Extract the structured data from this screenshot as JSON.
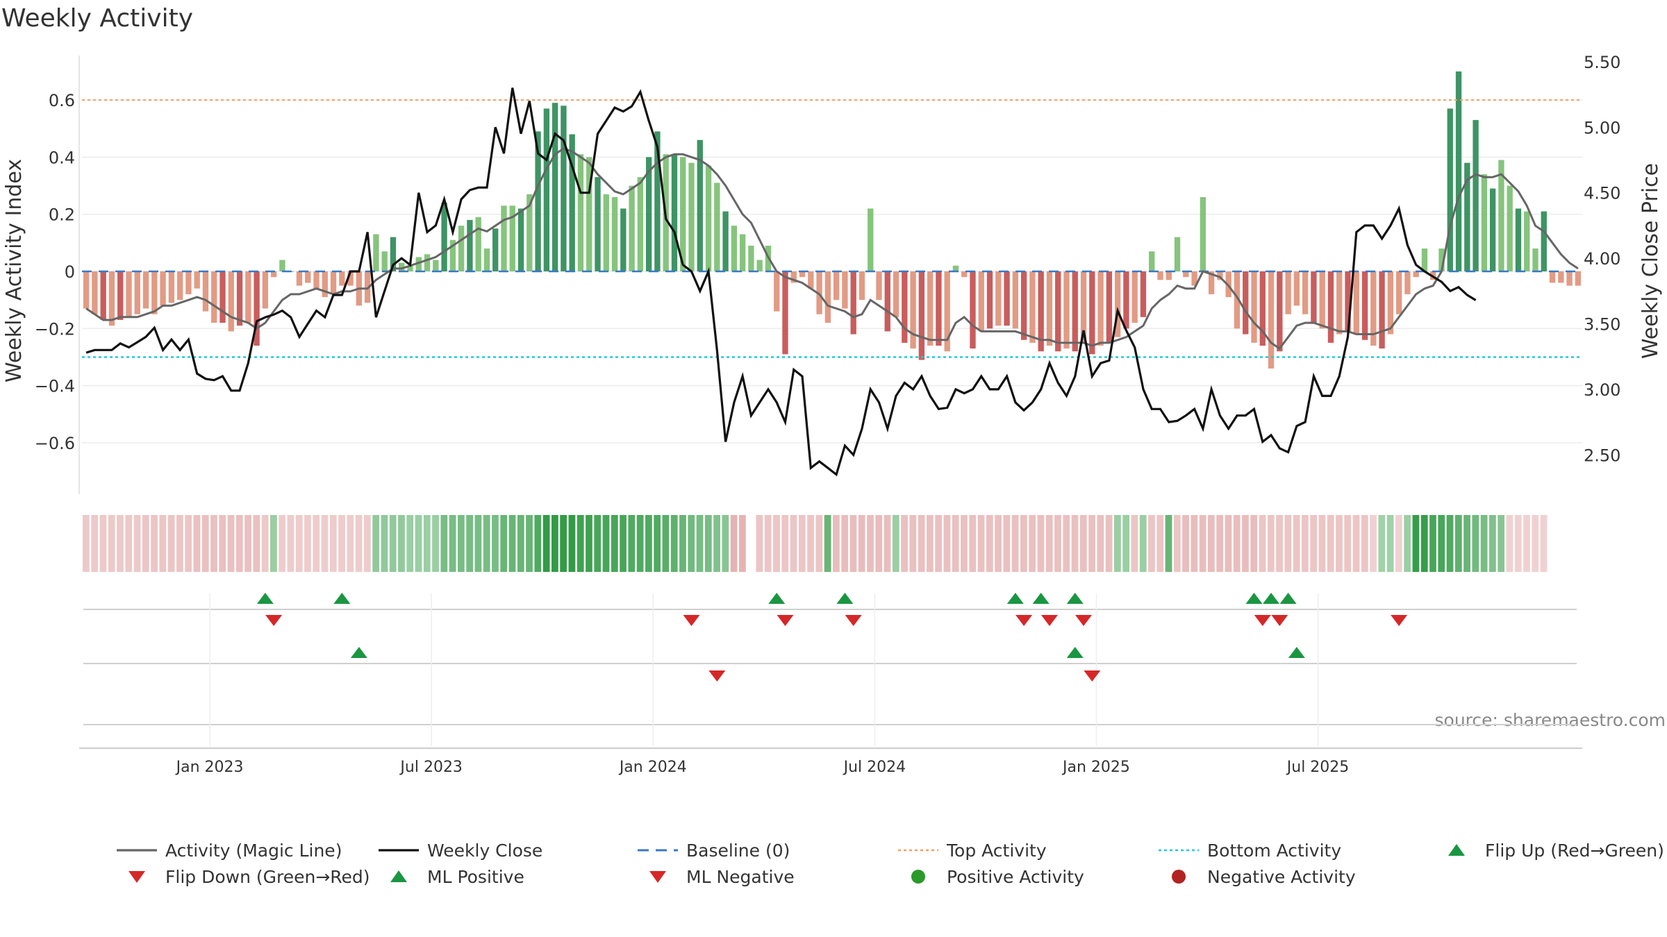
{
  "chart_data": {
    "type": "bar",
    "title": "Weekly Activity",
    "source": "source: sharemaestro.com",
    "ylabel": "Weekly Activity Index",
    "y2label": "Weekly Close Price",
    "ylim": [
      -0.78,
      0.78
    ],
    "y2lim": [
      2.2,
      5.6
    ],
    "yticks": [
      "0.6",
      "0.4",
      "0.2",
      "0",
      "−0.2",
      "−0.4",
      "−0.6"
    ],
    "yticks_values": [
      0.6,
      0.4,
      0.2,
      0,
      -0.2,
      -0.4,
      -0.6
    ],
    "y2ticks": [
      "5.50",
      "5.00",
      "4.50",
      "4.00",
      "3.50",
      "3.00",
      "2.50"
    ],
    "y2ticks_values": [
      5.5,
      5.0,
      4.5,
      4.0,
      3.5,
      3.0,
      2.5
    ],
    "xticks": [
      "Jan 2023",
      "Jul 2023",
      "Jan 2024",
      "Jul 2024",
      "Jan 2025",
      "Jul 2025"
    ],
    "xticks_week": [
      15,
      41,
      67,
      93,
      119,
      145
    ],
    "top_activity": 0.6,
    "bottom_activity": -0.3,
    "activity": [
      -0.13,
      -0.15,
      -0.17,
      -0.19,
      -0.17,
      -0.16,
      -0.15,
      -0.13,
      -0.15,
      -0.12,
      -0.11,
      -0.1,
      -0.08,
      -0.06,
      -0.14,
      -0.18,
      -0.18,
      -0.21,
      -0.19,
      -0.18,
      -0.26,
      -0.13,
      -0.02,
      0.04,
      0.0,
      -0.05,
      -0.04,
      -0.06,
      -0.09,
      -0.08,
      -0.05,
      -0.05,
      -0.12,
      -0.11,
      0.13,
      0.07,
      0.12,
      0.03,
      0.02,
      0.05,
      0.06,
      0.04,
      0.24,
      0.11,
      0.16,
      0.18,
      0.19,
      0.08,
      0.15,
      0.23,
      0.23,
      0.22,
      0.27,
      0.49,
      0.57,
      0.59,
      0.58,
      0.48,
      0.41,
      0.4,
      0.33,
      0.27,
      0.26,
      0.22,
      0.3,
      0.33,
      0.4,
      0.49,
      0.41,
      0.41,
      0.4,
      0.38,
      0.46,
      0.37,
      0.31,
      0.21,
      0.16,
      0.13,
      0.09,
      0.04,
      0.09,
      -0.14,
      -0.29,
      -0.04,
      -0.02,
      -0.06,
      -0.15,
      -0.18,
      -0.1,
      -0.13,
      -0.22,
      -0.1,
      0.22,
      -0.1,
      -0.21,
      -0.16,
      -0.25,
      -0.27,
      -0.31,
      -0.26,
      -0.26,
      -0.28,
      0.02,
      -0.02,
      -0.27,
      -0.21,
      -0.2,
      -0.19,
      -0.19,
      -0.2,
      -0.24,
      -0.25,
      -0.28,
      -0.26,
      -0.28,
      -0.27,
      -0.28,
      -0.25,
      -0.29,
      -0.26,
      -0.25,
      -0.23,
      -0.2,
      -0.18,
      -0.16,
      0.07,
      -0.03,
      -0.03,
      0.12,
      -0.02,
      -0.05,
      0.26,
      -0.08,
      -0.03,
      -0.09,
      -0.2,
      -0.22,
      -0.25,
      -0.26,
      -0.34,
      -0.28,
      -0.15,
      -0.12,
      -0.15,
      -0.18,
      -0.2,
      -0.25,
      -0.22,
      -0.21,
      -0.22,
      -0.24,
      -0.26,
      -0.27,
      -0.22,
      -0.15,
      -0.08,
      -0.02,
      0.08,
      -0.03,
      0.08,
      0.57,
      0.7,
      0.38,
      0.53,
      0.34,
      0.29,
      0.39,
      0.3,
      0.22,
      0.21,
      0.08,
      0.21,
      -0.04,
      -0.04,
      -0.05,
      -0.05
    ],
    "magic_line": [
      -0.13,
      -0.15,
      -0.17,
      -0.17,
      -0.16,
      -0.16,
      -0.16,
      -0.15,
      -0.14,
      -0.12,
      -0.12,
      -0.11,
      -0.1,
      -0.09,
      -0.1,
      -0.12,
      -0.14,
      -0.16,
      -0.17,
      -0.18,
      -0.2,
      -0.18,
      -0.14,
      -0.1,
      -0.08,
      -0.08,
      -0.07,
      -0.06,
      -0.07,
      -0.08,
      -0.07,
      -0.07,
      -0.06,
      -0.06,
      -0.03,
      -0.01,
      0.01,
      0.01,
      0.02,
      0.03,
      0.04,
      0.05,
      0.07,
      0.09,
      0.11,
      0.13,
      0.15,
      0.14,
      0.16,
      0.18,
      0.19,
      0.21,
      0.23,
      0.3,
      0.36,
      0.41,
      0.43,
      0.42,
      0.4,
      0.38,
      0.34,
      0.31,
      0.28,
      0.27,
      0.29,
      0.31,
      0.35,
      0.38,
      0.4,
      0.41,
      0.41,
      0.4,
      0.39,
      0.37,
      0.34,
      0.3,
      0.25,
      0.2,
      0.17,
      0.11,
      0.05,
      0.0,
      -0.02,
      -0.03,
      -0.04,
      -0.06,
      -0.08,
      -0.12,
      -0.13,
      -0.14,
      -0.16,
      -0.15,
      -0.1,
      -0.12,
      -0.14,
      -0.16,
      -0.2,
      -0.22,
      -0.23,
      -0.24,
      -0.24,
      -0.24,
      -0.18,
      -0.16,
      -0.19,
      -0.21,
      -0.21,
      -0.21,
      -0.21,
      -0.21,
      -0.22,
      -0.23,
      -0.24,
      -0.24,
      -0.25,
      -0.25,
      -0.25,
      -0.25,
      -0.26,
      -0.25,
      -0.25,
      -0.24,
      -0.23,
      -0.21,
      -0.19,
      -0.13,
      -0.1,
      -0.08,
      -0.05,
      -0.06,
      -0.06,
      0.0,
      -0.01,
      -0.02,
      -0.05,
      -0.09,
      -0.14,
      -0.18,
      -0.21,
      -0.25,
      -0.27,
      -0.23,
      -0.19,
      -0.18,
      -0.18,
      -0.19,
      -0.2,
      -0.21,
      -0.21,
      -0.22,
      -0.22,
      -0.22,
      -0.21,
      -0.2,
      -0.16,
      -0.12,
      -0.08,
      -0.06,
      -0.05,
      0.0,
      0.16,
      0.26,
      0.32,
      0.34,
      0.33,
      0.33,
      0.34,
      0.31,
      0.28,
      0.23,
      0.16,
      0.14,
      0.1,
      0.06,
      0.03,
      0.01
    ],
    "weekly_close": [
      3.28,
      3.3,
      3.3,
      3.3,
      3.35,
      3.32,
      3.36,
      3.4,
      3.47,
      3.3,
      3.38,
      3.3,
      3.38,
      3.12,
      3.08,
      3.07,
      3.1,
      2.99,
      2.99,
      3.2,
      3.52,
      3.55,
      3.57,
      3.6,
      3.55,
      3.4,
      3.5,
      3.6,
      3.55,
      3.72,
      3.72,
      3.9,
      3.9,
      4.2,
      3.55,
      3.75,
      3.95,
      4.0,
      3.95,
      4.5,
      4.2,
      4.25,
      4.45,
      4.2,
      4.45,
      4.52,
      4.54,
      4.54,
      5.0,
      4.8,
      5.3,
      4.95,
      5.2,
      4.8,
      4.75,
      4.95,
      4.9,
      4.7,
      4.5,
      4.5,
      4.95,
      5.05,
      5.15,
      5.12,
      5.16,
      5.27,
      5.05,
      4.85,
      4.3,
      4.2,
      3.95,
      3.9,
      3.75,
      3.9,
      3.3,
      2.6,
      2.9,
      3.1,
      2.8,
      2.9,
      3.0,
      2.9,
      2.75,
      3.15,
      3.1,
      2.4,
      2.45,
      2.4,
      2.35,
      2.57,
      2.5,
      2.7,
      3.0,
      2.9,
      2.7,
      2.95,
      3.05,
      3.0,
      3.1,
      2.95,
      2.85,
      2.86,
      3.0,
      2.97,
      3.0,
      3.1,
      3.0,
      3.0,
      3.1,
      2.9,
      2.84,
      2.9,
      3.0,
      3.2,
      3.05,
      2.95,
      3.1,
      3.45,
      3.1,
      3.2,
      3.22,
      3.6,
      3.45,
      3.32,
      3.0,
      2.85,
      2.85,
      2.75,
      2.76,
      2.8,
      2.85,
      2.7,
      3.0,
      2.8,
      2.7,
      2.8,
      2.8,
      2.85,
      2.6,
      2.65,
      2.55,
      2.52,
      2.72,
      2.75,
      3.1,
      2.95,
      2.95,
      3.1,
      3.4,
      4.2,
      4.25,
      4.25,
      4.15,
      4.25,
      4.38,
      4.1,
      3.95,
      3.9,
      3.86,
      3.82,
      3.75,
      3.78,
      3.72,
      3.68
    ],
    "color_strip": [
      -0.4,
      -0.4,
      -0.4,
      -0.4,
      -0.4,
      -0.4,
      -0.4,
      -0.45,
      -0.45,
      -0.45,
      -0.45,
      -0.45,
      -0.45,
      -0.5,
      -0.5,
      -0.5,
      -0.5,
      -0.5,
      -0.5,
      -0.5,
      -0.5,
      -0.4,
      0.3,
      -0.35,
      -0.35,
      -0.35,
      -0.35,
      -0.35,
      -0.35,
      -0.35,
      -0.35,
      -0.35,
      -0.35,
      -0.35,
      0.35,
      0.35,
      0.35,
      0.35,
      0.3,
      0.3,
      0.3,
      0.3,
      0.5,
      0.5,
      0.5,
      0.5,
      0.5,
      0.5,
      0.5,
      0.6,
      0.6,
      0.6,
      0.6,
      0.75,
      0.95,
      0.95,
      0.95,
      0.95,
      0.85,
      0.85,
      0.8,
      0.8,
      0.8,
      0.8,
      0.75,
      0.75,
      0.75,
      0.75,
      0.7,
      0.65,
      0.6,
      0.55,
      0.5,
      0.5,
      0.45,
      0.4,
      -0.7,
      -0.7,
      null,
      -0.45,
      -0.45,
      -0.45,
      -0.45,
      -0.45,
      -0.45,
      -0.45,
      -0.45,
      0.6,
      -0.55,
      -0.55,
      -0.55,
      -0.55,
      -0.55,
      -0.55,
      -0.55,
      0.3,
      -0.5,
      -0.5,
      -0.5,
      -0.5,
      -0.5,
      -0.5,
      -0.5,
      -0.5,
      -0.5,
      -0.5,
      -0.5,
      -0.5,
      -0.5,
      -0.5,
      -0.5,
      -0.5,
      -0.5,
      -0.5,
      -0.5,
      -0.5,
      -0.5,
      -0.5,
      -0.5,
      -0.5,
      -0.5,
      0.3,
      0.3,
      -0.45,
      0.3,
      -0.45,
      -0.45,
      0.6,
      -0.45,
      -0.55,
      -0.55,
      -0.55,
      -0.55,
      -0.55,
      -0.55,
      -0.55,
      -0.55,
      -0.55,
      -0.45,
      -0.45,
      -0.45,
      -0.45,
      -0.45,
      -0.45,
      -0.45,
      -0.45,
      -0.45,
      -0.45,
      -0.45,
      -0.45,
      -0.45,
      -0.3,
      0.25,
      0.25,
      -0.3,
      0.3,
      0.9,
      0.9,
      0.8,
      0.8,
      0.75,
      0.65,
      0.6,
      0.55,
      0.5,
      0.45,
      0.4,
      -0.3,
      -0.3,
      -0.3,
      -0.3,
      -0.3
    ],
    "events": {
      "flip_up": [
        21,
        30,
        81,
        89,
        109,
        112,
        116,
        137,
        139,
        141
      ],
      "flip_down": [
        22,
        71,
        82,
        90,
        110,
        113,
        117,
        138,
        140,
        154
      ],
      "ml_positive": [
        32,
        116,
        142
      ],
      "ml_negative": [
        74,
        118
      ]
    },
    "legend": [
      {
        "label": "Activity (Magic Line)",
        "color": "#666666",
        "kind": "line"
      },
      {
        "label": "Weekly Close",
        "color": "#111111",
        "kind": "line"
      },
      {
        "label": "Baseline (0)",
        "color": "#3878c8",
        "kind": "dash"
      },
      {
        "label": "Top Activity",
        "color": "#f0a060",
        "kind": "dot"
      },
      {
        "label": "Bottom Activity",
        "color": "#22c8d8",
        "kind": "dot"
      },
      {
        "label": "Flip Up (Red→Green)",
        "color": "#1a9641",
        "kind": "tri-up"
      },
      {
        "label": "Flip Down (Green→Red)",
        "color": "#d62728",
        "kind": "tri-down"
      },
      {
        "label": "ML Positive",
        "color": "#1a9641",
        "kind": "tri-up"
      },
      {
        "label": "ML Negative",
        "color": "#d62728",
        "kind": "tri-down"
      },
      {
        "label": "Positive Activity",
        "color": "#2a9a2a",
        "kind": "circle"
      },
      {
        "label": "Negative Activity",
        "color": "#b22222",
        "kind": "circle"
      }
    ]
  }
}
